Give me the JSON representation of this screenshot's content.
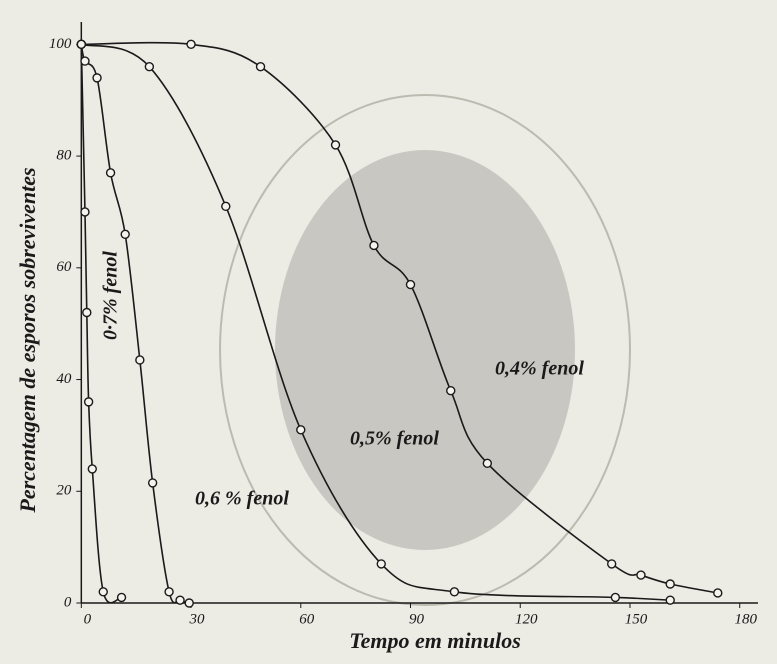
{
  "chart_data": {
    "type": "line",
    "x_label": "Tempo em minulos",
    "y_label": "Percentagem de esporos sobreviventes",
    "xlim": [
      -2,
      185
    ],
    "ylim": [
      0,
      104
    ],
    "xticks": [
      0,
      30,
      60,
      90,
      120,
      150,
      180
    ],
    "yticks": [
      0,
      20,
      40,
      60,
      80,
      100
    ],
    "series": [
      {
        "name": "0·7% fenol",
        "color": "#1a1a1a",
        "x": [
          0,
          1,
          1.5,
          2,
          3,
          6,
          11
        ],
        "values": [
          100,
          70,
          52,
          36,
          24,
          2,
          1
        ]
      },
      {
        "name": "0,6 % fenol",
        "color": "#1a1a1a",
        "x": [
          0,
          1,
          4.3,
          8,
          12,
          16,
          19.5,
          24,
          27,
          29.5
        ],
        "values": [
          100,
          97,
          94,
          77,
          66,
          43.5,
          21.5,
          2,
          0.5,
          0
        ]
      },
      {
        "name": "0,5% fenol",
        "color": "#1a1a1a",
        "x": [
          0,
          18.6,
          39.5,
          60,
          82,
          102,
          146,
          161
        ],
        "values": [
          100,
          96,
          71,
          31,
          7,
          2,
          1,
          0.5
        ]
      },
      {
        "name": "0,4% fenol",
        "color": "#1a1a1a",
        "x": [
          0,
          30,
          49,
          69.5,
          80,
          90,
          101,
          111,
          145,
          153,
          161,
          174
        ],
        "values": [
          100,
          100,
          96,
          82,
          64,
          57,
          38,
          25,
          7,
          5,
          3.4,
          1.8
        ]
      }
    ]
  }
}
